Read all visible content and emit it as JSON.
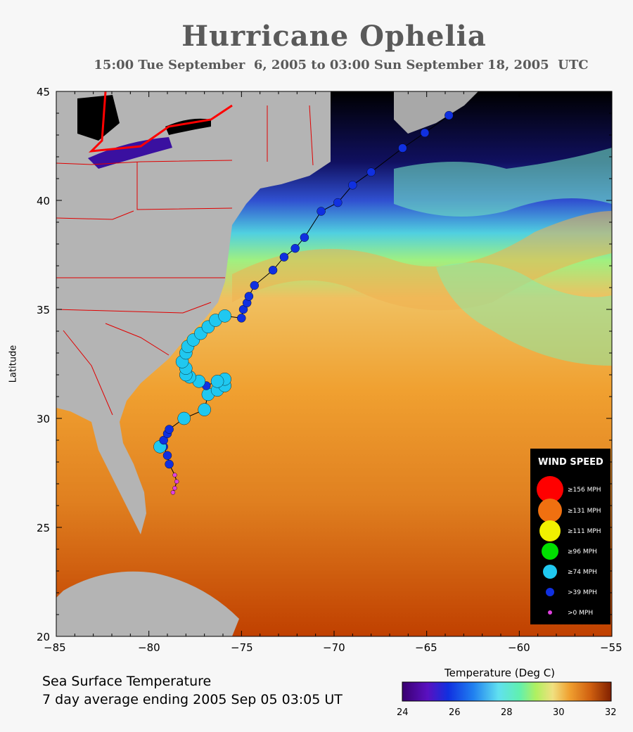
{
  "title": "Hurricane Ophelia",
  "subtitle": "15:00 Tue September  6, 2005 to 03:00 Sun September 18, 2005  UTC",
  "axes": {
    "ylabel": "Latitude",
    "x_ticks": [
      "−85",
      "−80",
      "−75",
      "−70",
      "−65",
      "−60",
      "−55"
    ],
    "y_ticks": [
      "45",
      "40",
      "35",
      "30",
      "25",
      "20"
    ]
  },
  "caption": {
    "line1": "Sea Surface Temperature",
    "line2": "7 day average ending 2005 Sep 05 03:05 UT"
  },
  "colorbar": {
    "title": "Temperature (Deg C)",
    "labels": [
      "24",
      "26",
      "28",
      "30",
      "32"
    ]
  },
  "legend": {
    "title": "WIND SPEED",
    "items": [
      {
        "label": "≥156 MPH",
        "color": "#ff0000"
      },
      {
        "label": "≥131 MPH",
        "color": "#f07010"
      },
      {
        "label": "≥111 MPH",
        "color": "#f0f000"
      },
      {
        "label": "≥96 MPH",
        "color": "#00e000"
      },
      {
        "label": "≥74 MPH",
        "color": "#20c8f0"
      },
      {
        "label": ">39 MPH",
        "color": "#1030e0"
      },
      {
        "label": ">0 MPH",
        "color": "#e040e0"
      }
    ]
  },
  "colors": {
    "land": "#b4b4b4",
    "lakes_north": "#000000",
    "boundaries": "#e00000",
    "sst_cold": "#2030c0",
    "sst_mid": "#60e0a0",
    "sst_warm": "#f0a030",
    "sst_hot": "#c04000"
  },
  "chart_data": {
    "type": "scatter",
    "xlim": [
      -85,
      -55
    ],
    "ylim": [
      20,
      45
    ],
    "xlabel": "",
    "ylabel": "Latitude",
    "track": [
      {
        "lon": -78.7,
        "lat": 26.6,
        "cat": ">0 MPH"
      },
      {
        "lon": -78.6,
        "lat": 26.8,
        "cat": ">0 MPH"
      },
      {
        "lon": -78.5,
        "lat": 27.1,
        "cat": ">0 MPH"
      },
      {
        "lon": -78.6,
        "lat": 27.4,
        "cat": ">0 MPH"
      },
      {
        "lon": -78.9,
        "lat": 27.9,
        "cat": ">39 MPH"
      },
      {
        "lon": -79.0,
        "lat": 28.3,
        "cat": ">39 MPH"
      },
      {
        "lon": -79.2,
        "lat": 28.7,
        "cat": ">39 MPH"
      },
      {
        "lon": -79.4,
        "lat": 28.7,
        "cat": "≥74 MPH"
      },
      {
        "lon": -79.2,
        "lat": 29.0,
        "cat": ">39 MPH"
      },
      {
        "lon": -79.0,
        "lat": 29.3,
        "cat": ">39 MPH"
      },
      {
        "lon": -78.9,
        "lat": 29.5,
        "cat": ">39 MPH"
      },
      {
        "lon": -78.1,
        "lat": 30.0,
        "cat": "≥74 MPH"
      },
      {
        "lon": -77.0,
        "lat": 30.4,
        "cat": "≥74 MPH"
      },
      {
        "lon": -76.8,
        "lat": 31.1,
        "cat": "≥74 MPH"
      },
      {
        "lon": -76.3,
        "lat": 31.3,
        "cat": "≥74 MPH"
      },
      {
        "lon": -75.9,
        "lat": 31.5,
        "cat": "≥74 MPH"
      },
      {
        "lon": -75.9,
        "lat": 31.8,
        "cat": "≥74 MPH"
      },
      {
        "lon": -76.3,
        "lat": 31.7,
        "cat": "≥74 MPH"
      },
      {
        "lon": -76.9,
        "lat": 31.5,
        "cat": ">39 MPH"
      },
      {
        "lon": -77.3,
        "lat": 31.7,
        "cat": "≥74 MPH"
      },
      {
        "lon": -77.8,
        "lat": 31.9,
        "cat": "≥74 MPH"
      },
      {
        "lon": -78.0,
        "lat": 32.0,
        "cat": "≥74 MPH"
      },
      {
        "lon": -78.0,
        "lat": 32.3,
        "cat": "≥74 MPH"
      },
      {
        "lon": -78.2,
        "lat": 32.6,
        "cat": "≥74 MPH"
      },
      {
        "lon": -78.0,
        "lat": 33.0,
        "cat": "≥74 MPH"
      },
      {
        "lon": -77.9,
        "lat": 33.3,
        "cat": "≥74 MPH"
      },
      {
        "lon": -77.6,
        "lat": 33.6,
        "cat": "≥74 MPH"
      },
      {
        "lon": -77.2,
        "lat": 33.9,
        "cat": "≥74 MPH"
      },
      {
        "lon": -76.8,
        "lat": 34.2,
        "cat": "≥74 MPH"
      },
      {
        "lon": -76.4,
        "lat": 34.5,
        "cat": "≥74 MPH"
      },
      {
        "lon": -75.9,
        "lat": 34.7,
        "cat": "≥74 MPH"
      },
      {
        "lon": -75.0,
        "lat": 34.6,
        "cat": ">39 MPH"
      },
      {
        "lon": -74.9,
        "lat": 35.0,
        "cat": ">39 MPH"
      },
      {
        "lon": -74.7,
        "lat": 35.3,
        "cat": ">39 MPH"
      },
      {
        "lon": -74.6,
        "lat": 35.6,
        "cat": ">39 MPH"
      },
      {
        "lon": -74.3,
        "lat": 36.1,
        "cat": ">39 MPH"
      },
      {
        "lon": -73.3,
        "lat": 36.8,
        "cat": ">39 MPH"
      },
      {
        "lon": -72.7,
        "lat": 37.4,
        "cat": ">39 MPH"
      },
      {
        "lon": -72.1,
        "lat": 37.8,
        "cat": ">39 MPH"
      },
      {
        "lon": -71.6,
        "lat": 38.3,
        "cat": ">39 MPH"
      },
      {
        "lon": -70.7,
        "lat": 39.5,
        "cat": ">39 MPH"
      },
      {
        "lon": -69.8,
        "lat": 39.9,
        "cat": ">39 MPH"
      },
      {
        "lon": -69.0,
        "lat": 40.7,
        "cat": ">39 MPH"
      },
      {
        "lon": -68.0,
        "lat": 41.3,
        "cat": ">39 MPH"
      },
      {
        "lon": -66.3,
        "lat": 42.4,
        "cat": ">39 MPH"
      },
      {
        "lon": -65.1,
        "lat": 43.1,
        "cat": ">39 MPH"
      },
      {
        "lon": -63.8,
        "lat": 43.9,
        "cat": ">39 MPH"
      }
    ]
  }
}
